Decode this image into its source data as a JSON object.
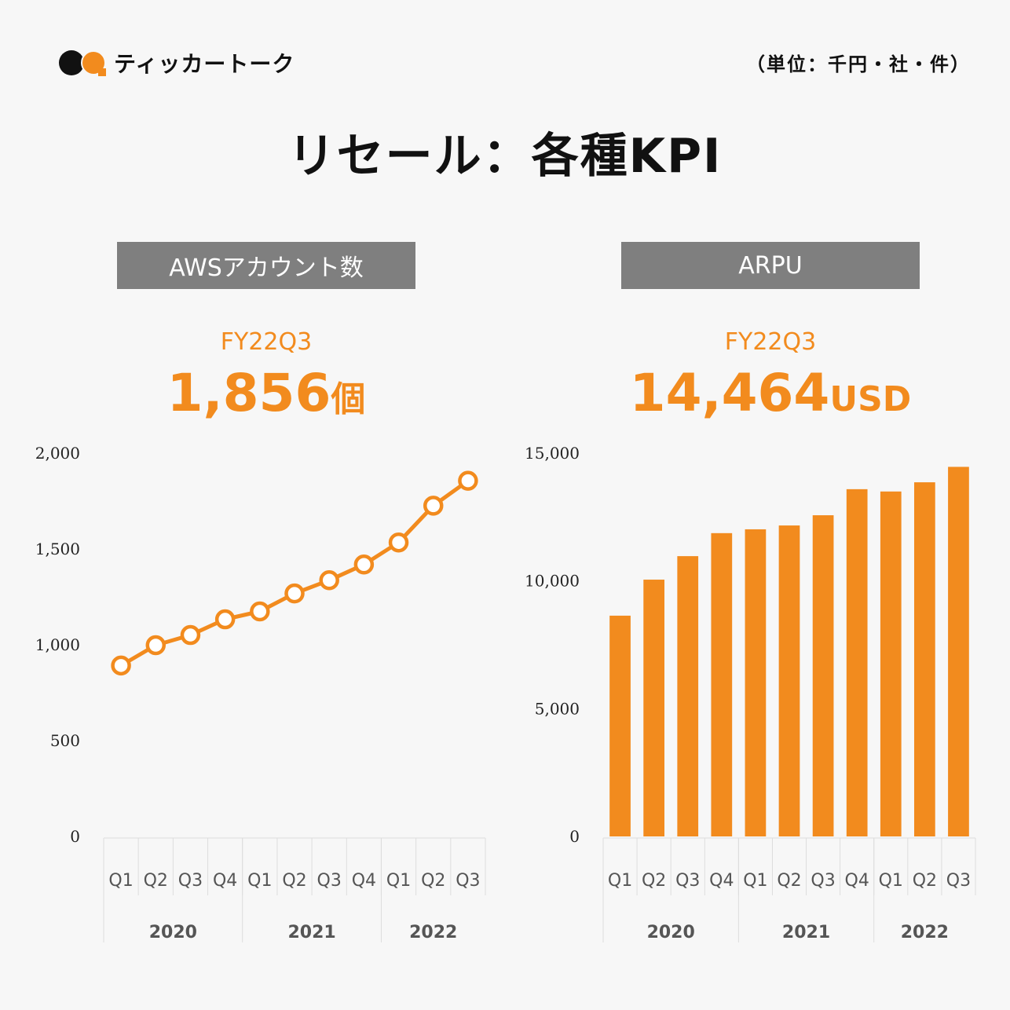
{
  "brand": {
    "name": "ティッカートーク",
    "logo_icon": "speech-bubbles-icon"
  },
  "unit_note": "（単位：千円・社・件）",
  "title": "リセール：各種KPI",
  "colors": {
    "accent": "#f28b1e",
    "header_bg": "#7f7f7f",
    "background": "#f7f7f7",
    "grid": "#dddddd"
  },
  "panels": [
    {
      "header": "AWSアカウント数",
      "period": "FY22Q3",
      "value": "1,856",
      "unit": "個"
    },
    {
      "header": "ARPU",
      "period": "FY22Q3",
      "value": "14,464",
      "unit": "USD"
    }
  ],
  "chart_data": [
    {
      "type": "line",
      "title": "AWSアカウント数",
      "categories": [
        "Q1",
        "Q2",
        "Q3",
        "Q4",
        "Q1",
        "Q2",
        "Q3",
        "Q4",
        "Q1",
        "Q2",
        "Q3"
      ],
      "groups": [
        {
          "label": "2020",
          "count": 4
        },
        {
          "label": "2021",
          "count": 4
        },
        {
          "label": "2022",
          "count": 3
        }
      ],
      "values": [
        892,
        998,
        1051,
        1133,
        1174,
        1268,
        1337,
        1419,
        1534,
        1726,
        1856
      ],
      "yticks": [
        0,
        500,
        1000,
        1500,
        2000
      ],
      "ytick_labels": [
        "0",
        "500",
        "1,000",
        "1,500",
        "2,000"
      ],
      "ylim": [
        0,
        2000
      ],
      "marker": "hollow-circle",
      "grid": false
    },
    {
      "type": "bar",
      "title": "ARPU",
      "categories": [
        "Q1",
        "Q2",
        "Q3",
        "Q4",
        "Q1",
        "Q2",
        "Q3",
        "Q4",
        "Q1",
        "Q2",
        "Q3"
      ],
      "groups": [
        {
          "label": "2020",
          "count": 4
        },
        {
          "label": "2021",
          "count": 4
        },
        {
          "label": "2022",
          "count": 3
        }
      ],
      "values": [
        8640,
        10050,
        10970,
        11870,
        12020,
        12170,
        12570,
        13590,
        13500,
        13860,
        14464
      ],
      "yticks": [
        0,
        5000,
        10000,
        15000
      ],
      "ytick_labels": [
        "0",
        "5,000",
        "10,000",
        "15,000"
      ],
      "ylim": [
        0,
        15000
      ],
      "grid": false
    }
  ]
}
